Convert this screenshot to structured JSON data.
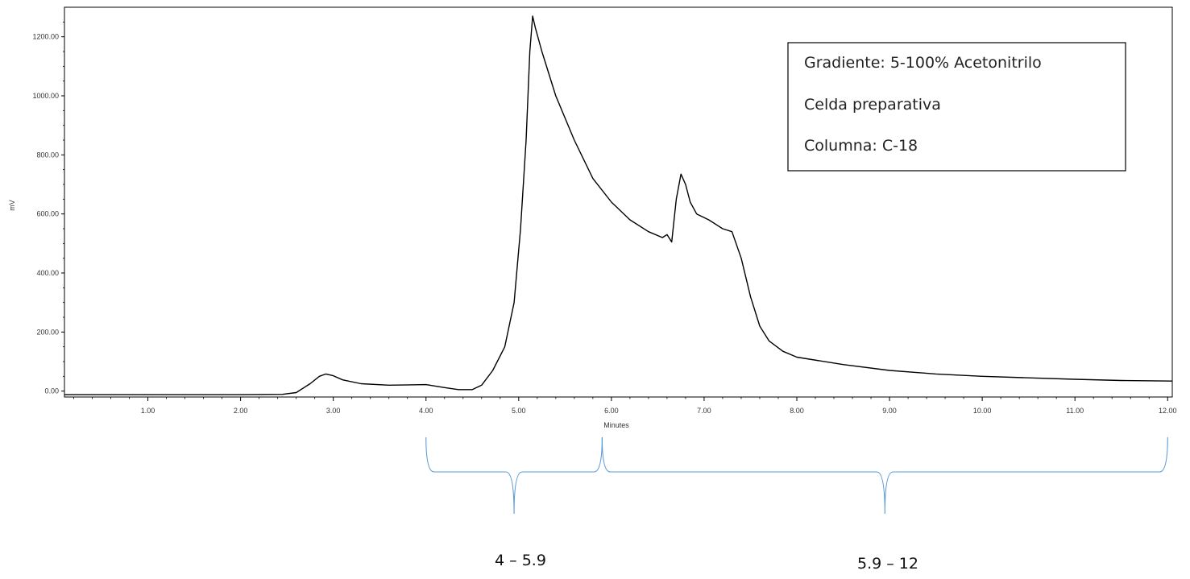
{
  "chart_data": {
    "type": "line",
    "title": "",
    "xlabel": "Minutes",
    "ylabel": "mV",
    "xlim": [
      0.1,
      12.05
    ],
    "ylim": [
      -20,
      1300
    ],
    "x_ticks": [
      1.0,
      2.0,
      3.0,
      4.0,
      5.0,
      6.0,
      7.0,
      8.0,
      9.0,
      10.0,
      11.0,
      12.0
    ],
    "x_tick_labels": [
      "1.00",
      "2.00",
      "3.00",
      "4.00",
      "5.00",
      "6.00",
      "7.00",
      "8.00",
      "9.00",
      "10.00",
      "11.00",
      "12.00"
    ],
    "y_ticks": [
      0,
      200,
      400,
      600,
      800,
      1000,
      1200
    ],
    "y_tick_labels": [
      "0.00",
      "200.00",
      "400.00",
      "600.00",
      "800.00",
      "1000.00",
      "1200.00"
    ],
    "grid": false,
    "series": [
      {
        "name": "",
        "color": "#000000",
        "points": [
          [
            0.1,
            -12
          ],
          [
            2.0,
            -12
          ],
          [
            2.45,
            -11
          ],
          [
            2.6,
            -5
          ],
          [
            2.75,
            25
          ],
          [
            2.85,
            50
          ],
          [
            2.92,
            58
          ],
          [
            3.0,
            52
          ],
          [
            3.1,
            38
          ],
          [
            3.3,
            25
          ],
          [
            3.6,
            20
          ],
          [
            4.0,
            22
          ],
          [
            4.2,
            12
          ],
          [
            4.35,
            5
          ],
          [
            4.5,
            5
          ],
          [
            4.6,
            20
          ],
          [
            4.72,
            70
          ],
          [
            4.85,
            150
          ],
          [
            4.95,
            300
          ],
          [
            5.02,
            550
          ],
          [
            5.08,
            850
          ],
          [
            5.12,
            1150
          ],
          [
            5.15,
            1270
          ],
          [
            5.18,
            1230
          ],
          [
            5.25,
            1150
          ],
          [
            5.4,
            1000
          ],
          [
            5.6,
            850
          ],
          [
            5.8,
            720
          ],
          [
            6.0,
            640
          ],
          [
            6.2,
            580
          ],
          [
            6.4,
            540
          ],
          [
            6.55,
            520
          ],
          [
            6.6,
            530
          ],
          [
            6.65,
            505
          ],
          [
            6.7,
            650
          ],
          [
            6.75,
            735
          ],
          [
            6.8,
            700
          ],
          [
            6.85,
            640
          ],
          [
            6.92,
            600
          ],
          [
            7.05,
            580
          ],
          [
            7.2,
            550
          ],
          [
            7.3,
            540
          ],
          [
            7.4,
            450
          ],
          [
            7.5,
            320
          ],
          [
            7.6,
            220
          ],
          [
            7.7,
            170
          ],
          [
            7.85,
            135
          ],
          [
            8.0,
            115
          ],
          [
            8.5,
            90
          ],
          [
            9.0,
            70
          ],
          [
            9.5,
            58
          ],
          [
            10.0,
            50
          ],
          [
            10.5,
            45
          ],
          [
            11.0,
            40
          ],
          [
            11.5,
            36
          ],
          [
            12.05,
            34
          ]
        ]
      }
    ],
    "legend": {
      "position": "top-right",
      "lines": [
        "Gradiente: 5-100% Acetonitrilo",
        "Celda preparativa",
        "Columna: C-18"
      ]
    },
    "fraction_ranges": [
      {
        "label": "4 – 5.9",
        "start": 4.0,
        "end": 5.9
      },
      {
        "label": "5.9 – 12",
        "start": 5.9,
        "end": 12.0
      }
    ]
  },
  "colors": {
    "trace": "#000000",
    "bracket": "#5b9bd5",
    "axis": "#000000"
  }
}
